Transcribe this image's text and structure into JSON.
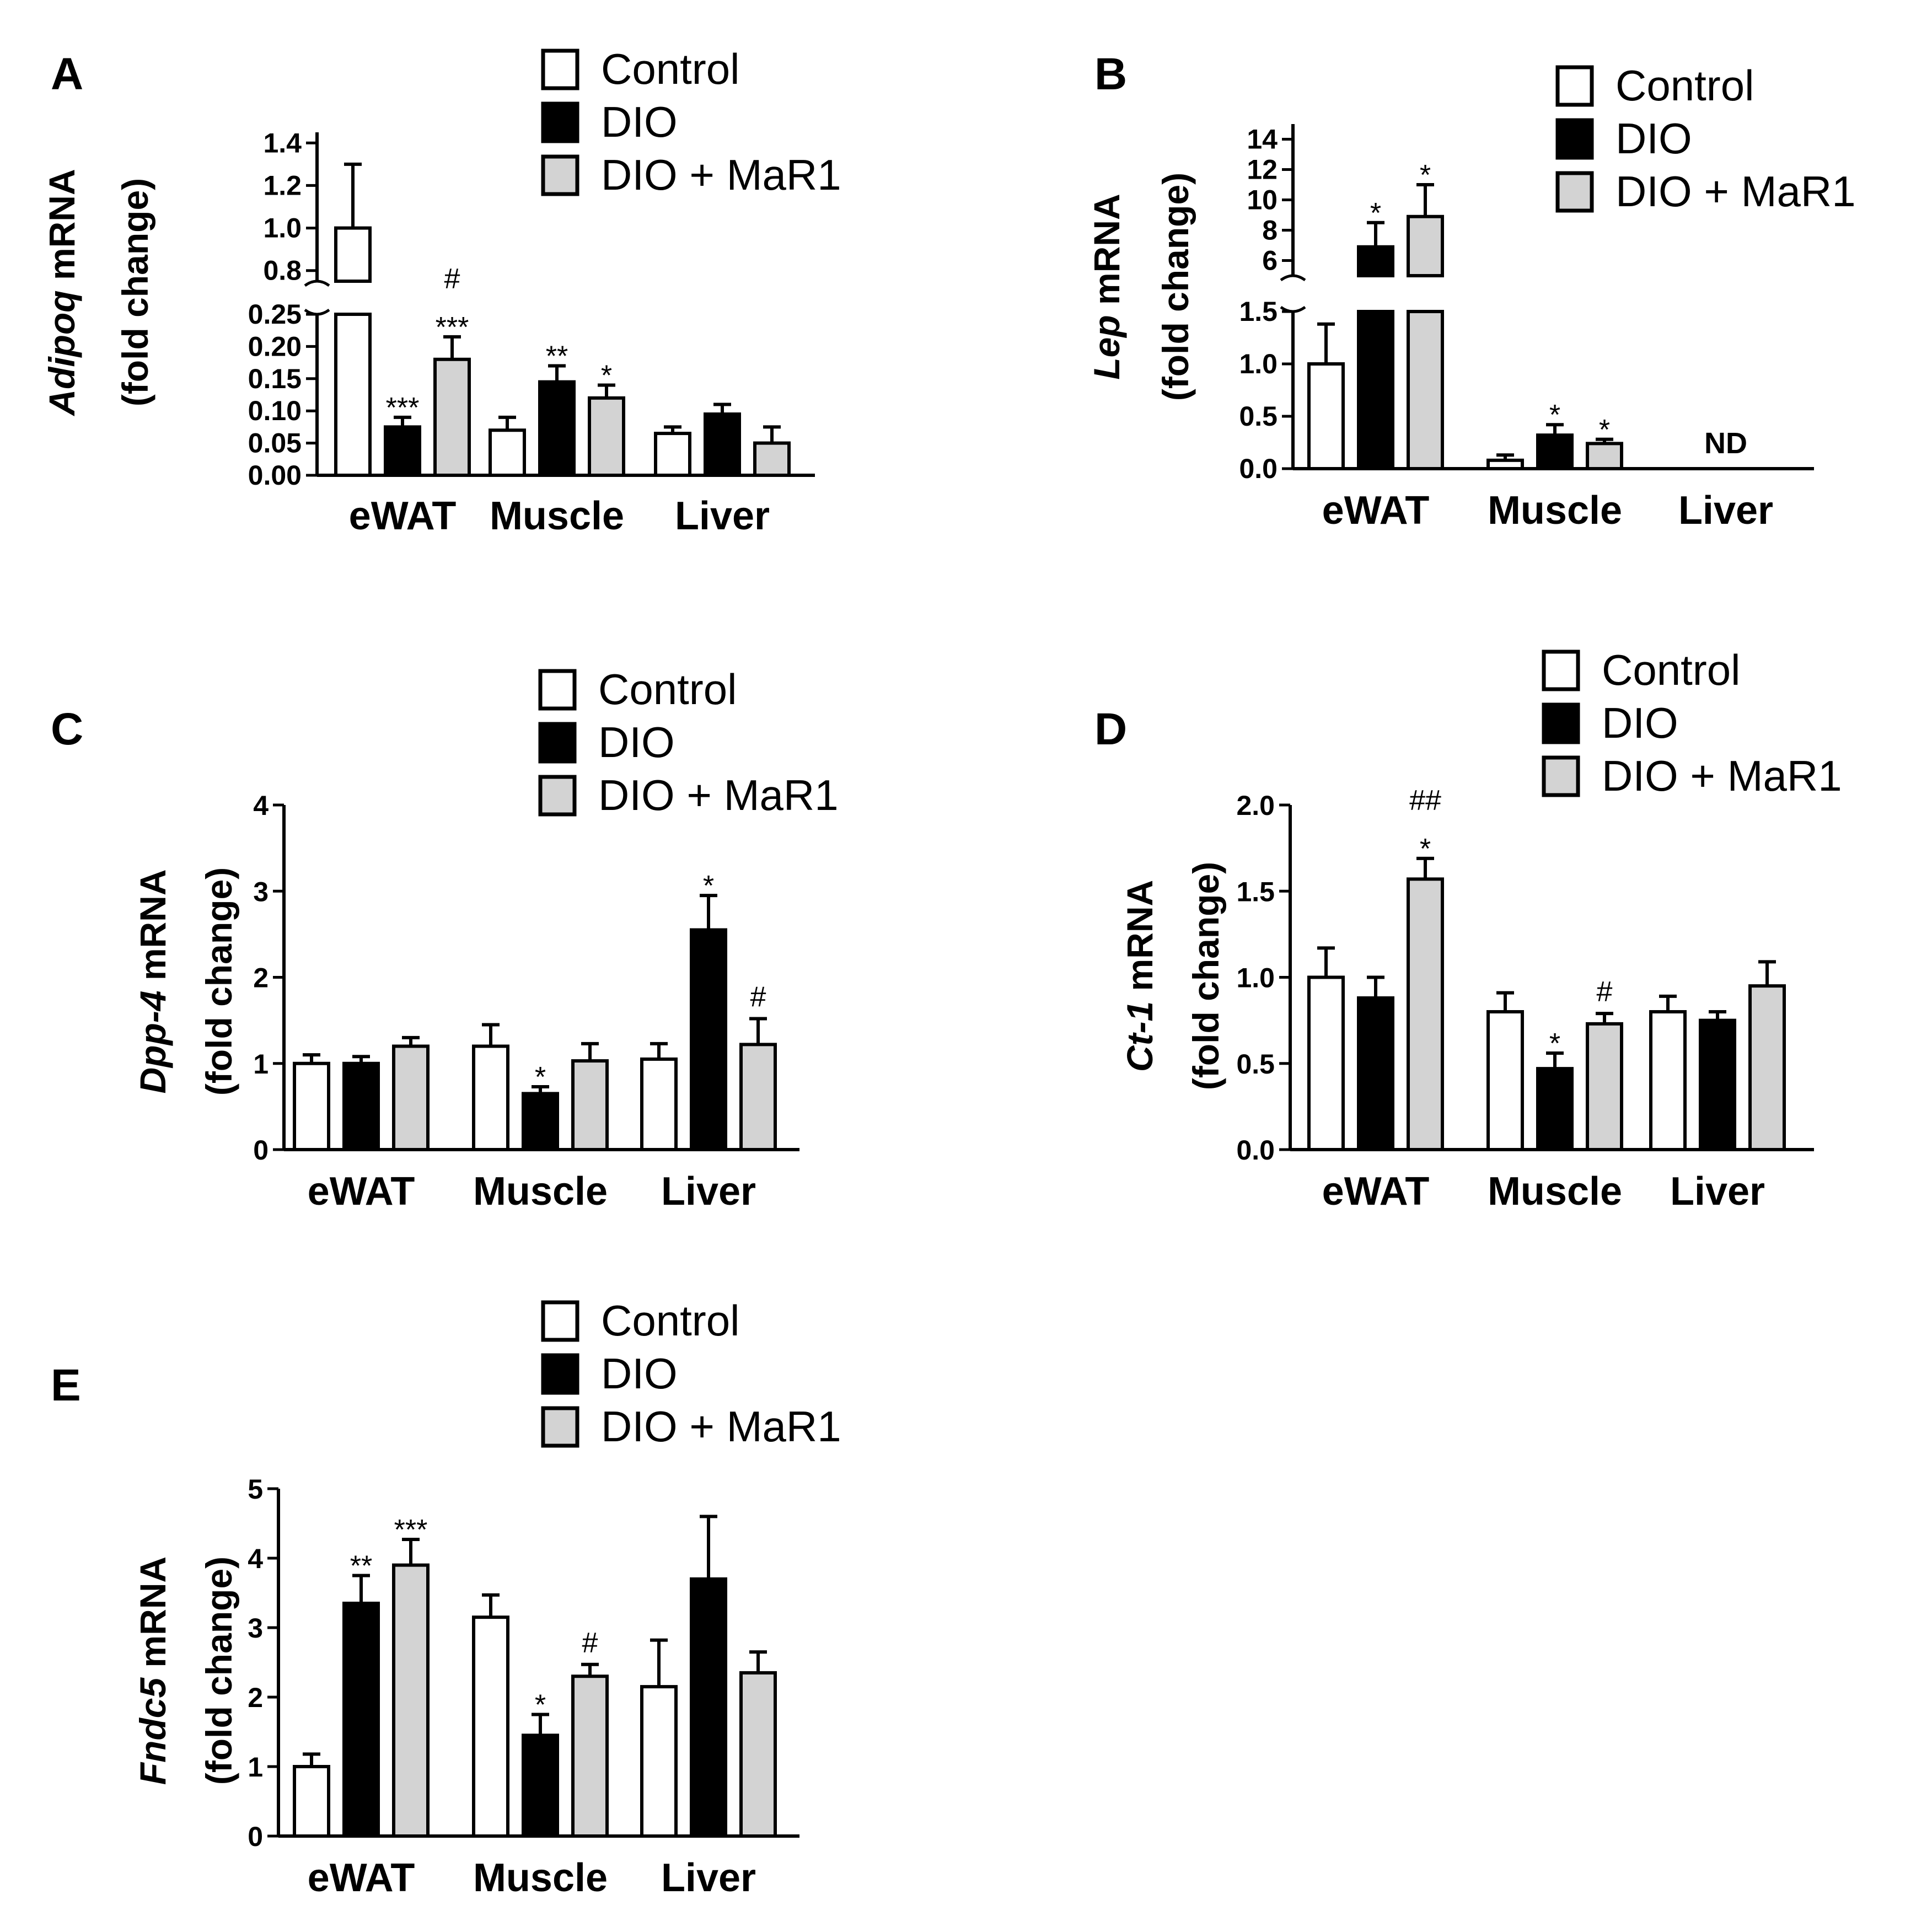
{
  "legend": {
    "groups": [
      "Control",
      "DIO",
      "DIO + MaR1"
    ],
    "colors": [
      "#ffffff",
      "#000000",
      "#d3d3d3"
    ]
  },
  "chart_data": [
    {
      "id": "A",
      "type": "bar",
      "panel": "A",
      "ylabel_gene": "Adipoq",
      "ylabel_suffix": " mRNA",
      "ylabel_line2": "(fold change)",
      "categories": [
        "eWAT",
        "Muscle",
        "Liver"
      ],
      "axis_break": true,
      "ylim_lower": [
        0,
        0.25
      ],
      "ylim_upper": [
        0.75,
        1.45
      ],
      "yticks_lower": [
        "0.00",
        "0.05",
        "0.10",
        "0.15",
        "0.20",
        "0.25"
      ],
      "yticks_upper": [
        "0.8",
        "1.0",
        "1.2",
        "1.4"
      ],
      "series": [
        {
          "name": "Control",
          "values": [
            1.0,
            0.07,
            0.065
          ],
          "errors": [
            0.3,
            0.02,
            0.01
          ],
          "sig": [
            "",
            "",
            ""
          ]
        },
        {
          "name": "DIO",
          "values": [
            0.075,
            0.145,
            0.095
          ],
          "errors": [
            0.015,
            0.025,
            0.015
          ],
          "sig": [
            "***",
            "**",
            ""
          ]
        },
        {
          "name": "DIO + MaR1",
          "values": [
            0.18,
            0.12,
            0.05
          ],
          "errors": [
            0.035,
            0.02,
            0.025
          ],
          "sig": [
            "#\n***",
            "*",
            ""
          ]
        }
      ]
    },
    {
      "id": "B",
      "type": "bar",
      "panel": "B",
      "ylabel_gene": "Lep",
      "ylabel_suffix": " mRNA",
      "ylabel_line2": "(fold change)",
      "categories": [
        "eWAT",
        "Muscle",
        "Liver"
      ],
      "axis_break": true,
      "ylim_lower": [
        0,
        1.5
      ],
      "ylim_upper": [
        5,
        15
      ],
      "yticks_lower": [
        "0.0",
        "0.5",
        "1.0",
        "1.5"
      ],
      "yticks_upper": [
        "6",
        "8",
        "10",
        "12",
        "14"
      ],
      "not_detected": [
        "",
        "",
        "ND"
      ],
      "series": [
        {
          "name": "Control",
          "values": [
            1.0,
            0.08,
            null
          ],
          "errors": [
            0.38,
            0.05,
            null
          ],
          "sig": [
            "",
            "",
            ""
          ]
        },
        {
          "name": "DIO",
          "values": [
            6.9,
            0.32,
            null
          ],
          "errors": [
            1.6,
            0.1,
            null
          ],
          "sig": [
            "*",
            "*",
            ""
          ]
        },
        {
          "name": "DIO + MaR1",
          "values": [
            8.9,
            0.24,
            null
          ],
          "errors": [
            2.1,
            0.04,
            null
          ],
          "sig": [
            "*",
            "*",
            ""
          ]
        }
      ]
    },
    {
      "id": "C",
      "type": "bar",
      "panel": "C",
      "ylabel_gene": "Dpp-4",
      "ylabel_suffix": " mRNA",
      "ylabel_line2": "(fold change)",
      "categories": [
        "eWAT",
        "Muscle",
        "Liver"
      ],
      "ylim": [
        0,
        4
      ],
      "yticks": [
        "0",
        "1",
        "2",
        "3",
        "4"
      ],
      "series": [
        {
          "name": "Control",
          "values": [
            1.0,
            1.2,
            1.05
          ],
          "errors": [
            0.1,
            0.25,
            0.18
          ],
          "sig": [
            "",
            "",
            ""
          ]
        },
        {
          "name": "DIO",
          "values": [
            1.0,
            0.65,
            2.55
          ],
          "errors": [
            0.08,
            0.08,
            0.4
          ],
          "sig": [
            "",
            "*",
            "*"
          ]
        },
        {
          "name": "DIO + MaR1",
          "values": [
            1.2,
            1.03,
            1.22
          ],
          "errors": [
            0.1,
            0.2,
            0.3
          ],
          "sig": [
            "",
            "",
            "#"
          ]
        }
      ]
    },
    {
      "id": "D",
      "type": "bar",
      "panel": "D",
      "ylabel_gene": "Ct-1",
      "ylabel_suffix": " mRNA",
      "ylabel_line2": "(fold change)",
      "categories": [
        "eWAT",
        "Muscle",
        "Liver"
      ],
      "ylim": [
        0,
        2.0
      ],
      "yticks": [
        "0.0",
        "0.5",
        "1.0",
        "1.5",
        "2.0"
      ],
      "series": [
        {
          "name": "Control",
          "values": [
            1.0,
            0.8,
            0.8
          ],
          "errors": [
            0.17,
            0.11,
            0.09
          ],
          "sig": [
            "",
            "",
            ""
          ]
        },
        {
          "name": "DIO",
          "values": [
            0.88,
            0.47,
            0.75
          ],
          "errors": [
            0.12,
            0.09,
            0.05
          ],
          "sig": [
            "",
            "*",
            ""
          ]
        },
        {
          "name": "DIO + MaR1",
          "values": [
            1.57,
            0.73,
            0.95
          ],
          "errors": [
            0.12,
            0.06,
            0.14
          ],
          "sig": [
            "##\n*",
            "#",
            ""
          ]
        }
      ]
    },
    {
      "id": "E",
      "type": "bar",
      "panel": "E",
      "ylabel_gene": "Fndc5",
      "ylabel_suffix": " mRNA",
      "ylabel_line2": "(fold change)",
      "categories": [
        "eWAT",
        "Muscle",
        "Liver"
      ],
      "ylim": [
        0,
        5
      ],
      "yticks": [
        "0",
        "1",
        "2",
        "3",
        "4",
        "5"
      ],
      "series": [
        {
          "name": "Control",
          "values": [
            1.0,
            3.15,
            2.15
          ],
          "errors": [
            0.18,
            0.32,
            0.67
          ],
          "sig": [
            "",
            "",
            ""
          ]
        },
        {
          "name": "DIO",
          "values": [
            3.35,
            1.45,
            3.7
          ],
          "errors": [
            0.4,
            0.3,
            0.9
          ],
          "sig": [
            "**",
            "*",
            ""
          ]
        },
        {
          "name": "DIO + MaR1",
          "values": [
            3.9,
            2.3,
            2.35
          ],
          "errors": [
            0.37,
            0.17,
            0.3
          ],
          "sig": [
            "***",
            "#",
            ""
          ]
        }
      ]
    }
  ]
}
